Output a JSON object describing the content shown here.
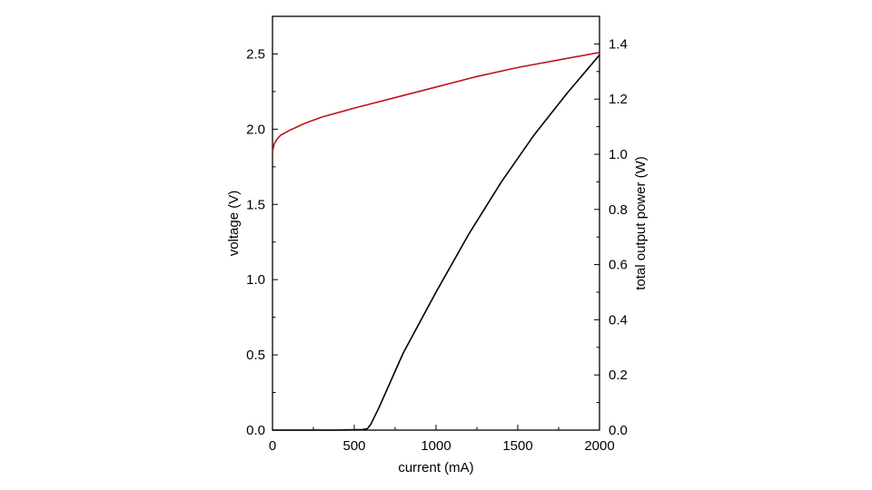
{
  "chart_data": {
    "type": "line",
    "title": "",
    "xlabel": "current (mA)",
    "ylabel_left": "voltage (V)",
    "ylabel_right": "total output power (W)",
    "xlim": [
      0,
      2000
    ],
    "ylim_left": [
      0,
      2.75
    ],
    "ylim_right": [
      0,
      1.5
    ],
    "x_ticks": [
      "0",
      "500",
      "1000",
      "1500",
      "2000"
    ],
    "y_left_ticks": [
      "0.0",
      "0.5",
      "1.0",
      "1.5",
      "2.0",
      "2.5"
    ],
    "y_right_ticks": [
      "0.0",
      "0.2",
      "0.4",
      "0.6",
      "0.8",
      "1.0",
      "1.2",
      "1.4"
    ],
    "grid": false,
    "colors": {
      "voltage": "#c0141c",
      "power": "#000000",
      "axes": "#000000"
    },
    "series": [
      {
        "axis": "left",
        "x": [
          0,
          10,
          25,
          50,
          100,
          200,
          300,
          500,
          750,
          1000,
          1250,
          1500,
          1750,
          2000
        ],
        "values": [
          1.85,
          1.9,
          1.93,
          1.96,
          1.99,
          2.04,
          2.08,
          2.14,
          2.21,
          2.28,
          2.35,
          2.41,
          2.46,
          2.51
        ]
      },
      {
        "axis": "right",
        "x": [
          0,
          200,
          400,
          550,
          580,
          600,
          650,
          800,
          1000,
          1200,
          1400,
          1600,
          1800,
          2000
        ],
        "values": [
          0.0,
          0.0,
          0.0,
          0.002,
          0.005,
          0.02,
          0.08,
          0.28,
          0.5,
          0.71,
          0.9,
          1.07,
          1.22,
          1.36
        ]
      }
    ]
  }
}
